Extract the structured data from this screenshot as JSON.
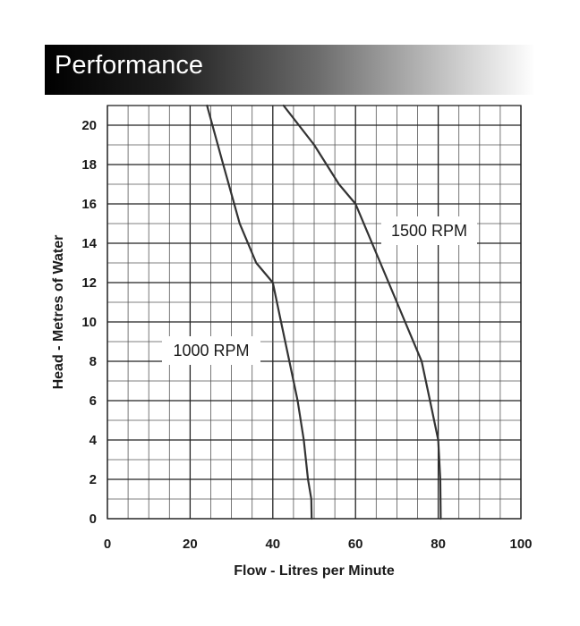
{
  "header": {
    "title": "Performance"
  },
  "chart_data": {
    "type": "line",
    "xlabel": "Flow - Litres per Minute",
    "ylabel": "Head - Metres of Water",
    "xlim": [
      0,
      100
    ],
    "ylim": [
      0,
      21
    ],
    "xticks": [
      0,
      20,
      40,
      60,
      80,
      100
    ],
    "yticks": [
      0,
      2,
      4,
      6,
      8,
      10,
      12,
      14,
      16,
      18,
      20
    ],
    "grid": true,
    "series": [
      {
        "name": "1000 RPM",
        "points": [
          [
            24.1,
            21
          ],
          [
            28,
            18
          ],
          [
            32,
            15
          ],
          [
            36,
            13
          ],
          [
            40,
            12
          ],
          [
            42,
            10
          ],
          [
            44,
            8
          ],
          [
            46,
            6
          ],
          [
            47.5,
            4
          ],
          [
            48.5,
            2
          ],
          [
            49.3,
            1
          ],
          [
            49.4,
            0
          ]
        ]
      },
      {
        "name": "1500 RPM",
        "points": [
          [
            42.6,
            21
          ],
          [
            50,
            19
          ],
          [
            56,
            17
          ],
          [
            60,
            16
          ],
          [
            64,
            14
          ],
          [
            68,
            12
          ],
          [
            72,
            10
          ],
          [
            76,
            8
          ],
          [
            78,
            6
          ],
          [
            80,
            4
          ],
          [
            80.5,
            2
          ],
          [
            80.6,
            0
          ]
        ]
      }
    ]
  }
}
